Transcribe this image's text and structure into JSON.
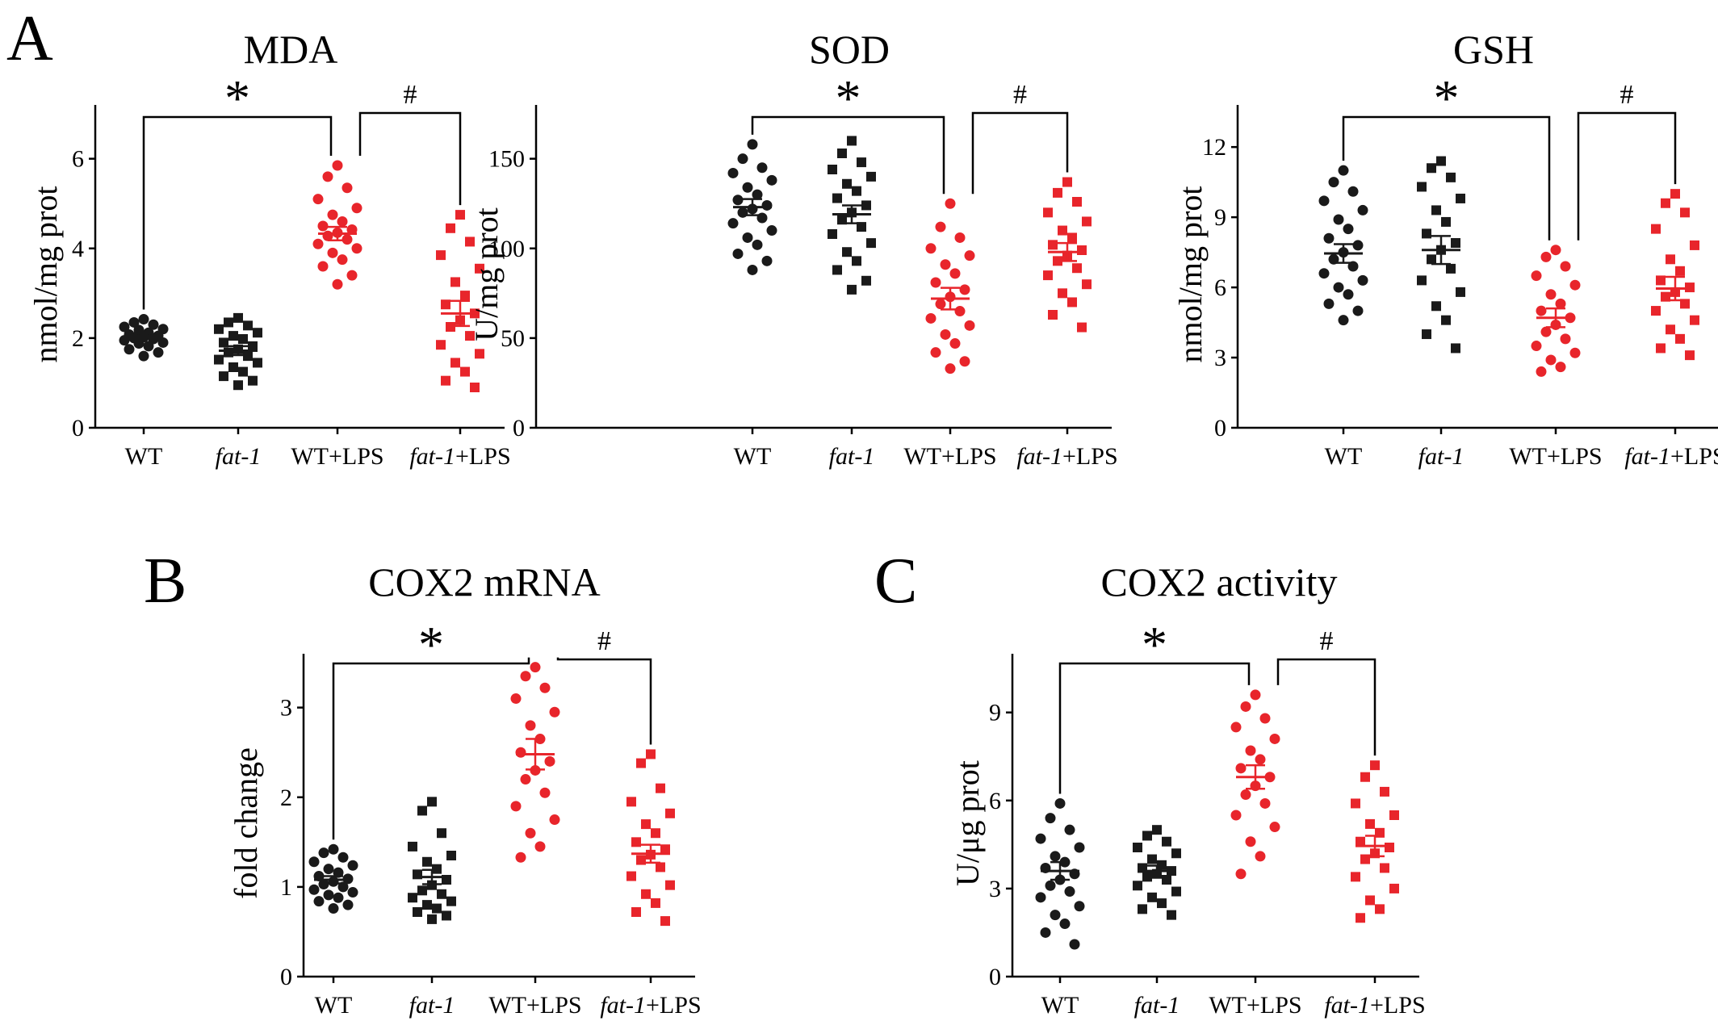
{
  "panels": [
    {
      "id": "a",
      "letter": "A"
    },
    {
      "id": "b",
      "letter": "B"
    },
    {
      "id": "c",
      "letter": "C"
    }
  ],
  "chart_data": [
    {
      "type": "scatter",
      "panel": "A",
      "title": "MDA",
      "ylabel": "nmol/mg prot",
      "xlabel": "",
      "categories": [
        {
          "pre": "",
          "italic": "",
          "post": "WT"
        },
        {
          "pre": "",
          "italic": "fat-1",
          "post": ""
        },
        {
          "pre": "",
          "italic": "",
          "post": "WT+LPS"
        },
        {
          "pre": "",
          "italic": "fat-1",
          "post": "+LPS"
        }
      ],
      "ylim": [
        0,
        7.2
      ],
      "yticks": [
        "0",
        "2",
        "4",
        "6"
      ],
      "group_colors": [
        "#1a1a1a",
        "#1a1a1a",
        "#e8252b",
        "#e8252b"
      ],
      "group_markers": [
        "circle",
        "square",
        "circle",
        "square"
      ],
      "groups": [
        {
          "values": [
            2.42,
            2.35,
            2.3,
            2.25,
            2.2,
            2.18,
            2.12,
            2.08,
            2.05,
            2.02,
            2.0,
            1.98,
            1.95,
            1.9,
            1.88,
            1.82,
            1.75,
            1.68,
            1.6
          ],
          "mean": 2.05,
          "sem": 0.06
        },
        {
          "values": [
            2.45,
            2.35,
            2.28,
            2.2,
            2.12,
            2.05,
            1.98,
            1.9,
            1.82,
            1.75,
            1.68,
            1.6,
            1.52,
            1.45,
            1.35,
            1.25,
            1.15,
            1.05,
            0.95
          ],
          "mean": 1.72,
          "sem": 0.1
        },
        {
          "values": [
            5.85,
            5.6,
            5.35,
            5.1,
            4.9,
            4.75,
            4.6,
            4.5,
            4.42,
            4.35,
            4.28,
            4.2,
            4.1,
            4.0,
            3.9,
            3.75,
            3.6,
            3.4,
            3.2
          ],
          "mean": 4.33,
          "sem": 0.15
        },
        {
          "values": [
            4.75,
            4.45,
            4.15,
            3.85,
            3.55,
            3.25,
            2.95,
            2.75,
            2.55,
            2.4,
            2.25,
            2.05,
            1.85,
            1.65,
            1.45,
            1.25,
            1.05,
            0.9
          ],
          "mean": 2.55,
          "sem": 0.28
        }
      ],
      "significance": [
        {
          "from": 0,
          "to": 2,
          "label": "*"
        },
        {
          "from": 2,
          "to": 3,
          "label": "#"
        }
      ]
    },
    {
      "type": "scatter",
      "panel": "A",
      "title": "SOD",
      "ylabel": "U/mg prot",
      "xlabel": "",
      "categories": [
        {
          "pre": "",
          "italic": "",
          "post": "WT"
        },
        {
          "pre": "",
          "italic": "fat-1",
          "post": ""
        },
        {
          "pre": "",
          "italic": "",
          "post": "WT+LPS"
        },
        {
          "pre": "",
          "italic": "fat-1",
          "post": "+LPS"
        }
      ],
      "ylim": [
        0,
        180
      ],
      "yticks": [
        "0",
        "50",
        "100",
        "150"
      ],
      "group_colors": [
        "#1a1a1a",
        "#1a1a1a",
        "#e8252b",
        "#e8252b"
      ],
      "group_markers": [
        "circle",
        "square",
        "circle",
        "square"
      ],
      "groups": [
        {
          "values": [
            158,
            150,
            145,
            142,
            138,
            134,
            130,
            127,
            124,
            122,
            120,
            117,
            114,
            110,
            106,
            102,
            97,
            93,
            88
          ],
          "mean": 123,
          "sem": 4.5
        },
        {
          "values": [
            160,
            153,
            148,
            144,
            140,
            136,
            132,
            128,
            124,
            120,
            116,
            112,
            108,
            103,
            98,
            93,
            88,
            82,
            77
          ],
          "mean": 119,
          "sem": 5
        },
        {
          "values": [
            125,
            112,
            106,
            100,
            96,
            91,
            86,
            81,
            77,
            73,
            69,
            65,
            61,
            57,
            52,
            47,
            42,
            37,
            33
          ],
          "mean": 72,
          "sem": 6
        },
        {
          "values": [
            137,
            131,
            126,
            120,
            115,
            110,
            106,
            102,
            99,
            96,
            93,
            89,
            85,
            80,
            75,
            70,
            63,
            56
          ],
          "mean": 98,
          "sem": 5
        }
      ],
      "significance": [
        {
          "from": 0,
          "to": 2,
          "label": "*"
        },
        {
          "from": 2,
          "to": 3,
          "label": "#"
        }
      ]
    },
    {
      "type": "scatter",
      "panel": "A",
      "title": "GSH",
      "ylabel": "nmol/mg prot",
      "xlabel": "",
      "categories": [
        {
          "pre": "",
          "italic": "",
          "post": "WT"
        },
        {
          "pre": "",
          "italic": "fat-1",
          "post": ""
        },
        {
          "pre": "",
          "italic": "",
          "post": "WT+LPS"
        },
        {
          "pre": "",
          "italic": "fat-1",
          "post": "+LPS"
        }
      ],
      "ylim": [
        0,
        13.8
      ],
      "yticks": [
        "0",
        "3",
        "6",
        "9",
        "12"
      ],
      "group_colors": [
        "#1a1a1a",
        "#1a1a1a",
        "#e8252b",
        "#e8252b"
      ],
      "group_markers": [
        "circle",
        "square",
        "circle",
        "square"
      ],
      "groups": [
        {
          "values": [
            11.0,
            10.5,
            10.1,
            9.7,
            9.3,
            8.9,
            8.5,
            8.1,
            7.8,
            7.5,
            7.2,
            6.9,
            6.6,
            6.3,
            6.0,
            5.7,
            5.3,
            5.0,
            4.6
          ],
          "mean": 7.45,
          "sem": 0.4
        },
        {
          "values": [
            11.4,
            11.1,
            10.7,
            10.3,
            9.8,
            9.3,
            8.8,
            8.3,
            7.9,
            7.6,
            7.2,
            6.8,
            6.3,
            5.8,
            5.2,
            4.6,
            4.0,
            3.4
          ],
          "mean": 7.6,
          "sem": 0.6
        },
        {
          "values": [
            7.6,
            7.3,
            6.9,
            6.5,
            6.1,
            5.7,
            5.3,
            5.0,
            4.7,
            4.4,
            4.1,
            3.8,
            3.5,
            3.2,
            2.9,
            2.6,
            2.4
          ],
          "mean": 4.7,
          "sem": 0.4
        },
        {
          "values": [
            10.0,
            9.6,
            9.2,
            8.5,
            7.8,
            7.2,
            6.7,
            6.3,
            6.0,
            5.8,
            5.6,
            5.3,
            5.0,
            4.6,
            4.2,
            3.8,
            3.4,
            3.1
          ],
          "mean": 5.95,
          "sem": 0.5
        }
      ],
      "significance": [
        {
          "from": 0,
          "to": 2,
          "label": "*"
        },
        {
          "from": 2,
          "to": 3,
          "label": "#"
        }
      ]
    },
    {
      "type": "scatter",
      "panel": "B",
      "title": "COX2 mRNA",
      "ylabel": "fold change",
      "xlabel": "",
      "categories": [
        {
          "pre": "",
          "italic": "",
          "post": "WT"
        },
        {
          "pre": "",
          "italic": "fat-1",
          "post": ""
        },
        {
          "pre": "",
          "italic": "",
          "post": "WT+LPS"
        },
        {
          "pre": "",
          "italic": "fat-1",
          "post": "+LPS"
        }
      ],
      "ylim": [
        0,
        3.6
      ],
      "yticks": [
        "0",
        "1",
        "2",
        "3"
      ],
      "group_colors": [
        "#1a1a1a",
        "#1a1a1a",
        "#e8252b",
        "#e8252b"
      ],
      "group_markers": [
        "circle",
        "square",
        "circle",
        "square"
      ],
      "groups": [
        {
          "values": [
            1.42,
            1.38,
            1.33,
            1.28,
            1.24,
            1.2,
            1.16,
            1.12,
            1.09,
            1.06,
            1.03,
            1.0,
            0.97,
            0.94,
            0.91,
            0.88,
            0.84,
            0.8,
            0.76
          ],
          "mean": 1.08,
          "sem": 0.04
        },
        {
          "values": [
            1.95,
            1.85,
            1.6,
            1.45,
            1.35,
            1.28,
            1.2,
            1.14,
            1.08,
            1.02,
            0.96,
            0.92,
            0.88,
            0.84,
            0.8,
            0.76,
            0.72,
            0.68,
            0.64
          ],
          "mean": 1.11,
          "sem": 0.08
        },
        {
          "values": [
            3.45,
            3.35,
            3.22,
            3.1,
            2.95,
            2.8,
            2.65,
            2.5,
            2.4,
            2.3,
            2.2,
            2.05,
            1.9,
            1.75,
            1.6,
            1.45,
            1.33
          ],
          "mean": 2.48,
          "sem": 0.17
        },
        {
          "values": [
            2.48,
            2.38,
            2.1,
            1.95,
            1.82,
            1.7,
            1.6,
            1.5,
            1.42,
            1.36,
            1.3,
            1.22,
            1.12,
            1.02,
            0.92,
            0.82,
            0.72,
            0.62
          ],
          "mean": 1.37,
          "sem": 0.1
        }
      ],
      "significance": [
        {
          "from": 0,
          "to": 2,
          "label": "*"
        },
        {
          "from": 2,
          "to": 3,
          "label": "#"
        }
      ]
    },
    {
      "type": "scatter",
      "panel": "C",
      "title": "COX2 activity",
      "ylabel": "U/μg prot",
      "xlabel": "",
      "categories": [
        {
          "pre": "",
          "italic": "",
          "post": "WT"
        },
        {
          "pre": "",
          "italic": "fat-1",
          "post": ""
        },
        {
          "pre": "",
          "italic": "",
          "post": "WT+LPS"
        },
        {
          "pre": "",
          "italic": "fat-1",
          "post": "+LPS"
        }
      ],
      "ylim": [
        0,
        11
      ],
      "yticks": [
        "0",
        "3",
        "6",
        "9"
      ],
      "group_colors": [
        "#1a1a1a",
        "#1a1a1a",
        "#e8252b",
        "#e8252b"
      ],
      "group_markers": [
        "circle",
        "square",
        "circle",
        "square"
      ],
      "groups": [
        {
          "values": [
            5.9,
            5.4,
            5.0,
            4.7,
            4.4,
            4.1,
            3.9,
            3.7,
            3.5,
            3.3,
            3.1,
            2.9,
            2.7,
            2.4,
            2.1,
            1.8,
            1.5,
            1.1
          ],
          "mean": 3.6,
          "sem": 0.3
        },
        {
          "values": [
            5.0,
            4.8,
            4.6,
            4.4,
            4.2,
            4.0,
            3.8,
            3.7,
            3.6,
            3.5,
            3.4,
            3.3,
            3.1,
            2.9,
            2.7,
            2.5,
            2.3,
            2.1
          ],
          "mean": 3.6,
          "sem": 0.18
        },
        {
          "values": [
            9.6,
            9.2,
            8.8,
            8.5,
            8.1,
            7.7,
            7.4,
            7.1,
            6.8,
            6.5,
            6.2,
            5.9,
            5.5,
            5.1,
            4.6,
            4.1,
            3.5
          ],
          "mean": 6.8,
          "sem": 0.4
        },
        {
          "values": [
            7.2,
            6.8,
            6.3,
            5.9,
            5.5,
            5.2,
            4.9,
            4.6,
            4.4,
            4.2,
            4.0,
            3.7,
            3.4,
            3.0,
            2.6,
            2.3,
            2.0
          ],
          "mean": 4.45,
          "sem": 0.35
        }
      ],
      "significance": [
        {
          "from": 0,
          "to": 2,
          "label": "*"
        },
        {
          "from": 2,
          "to": 3,
          "label": "#"
        }
      ]
    }
  ]
}
